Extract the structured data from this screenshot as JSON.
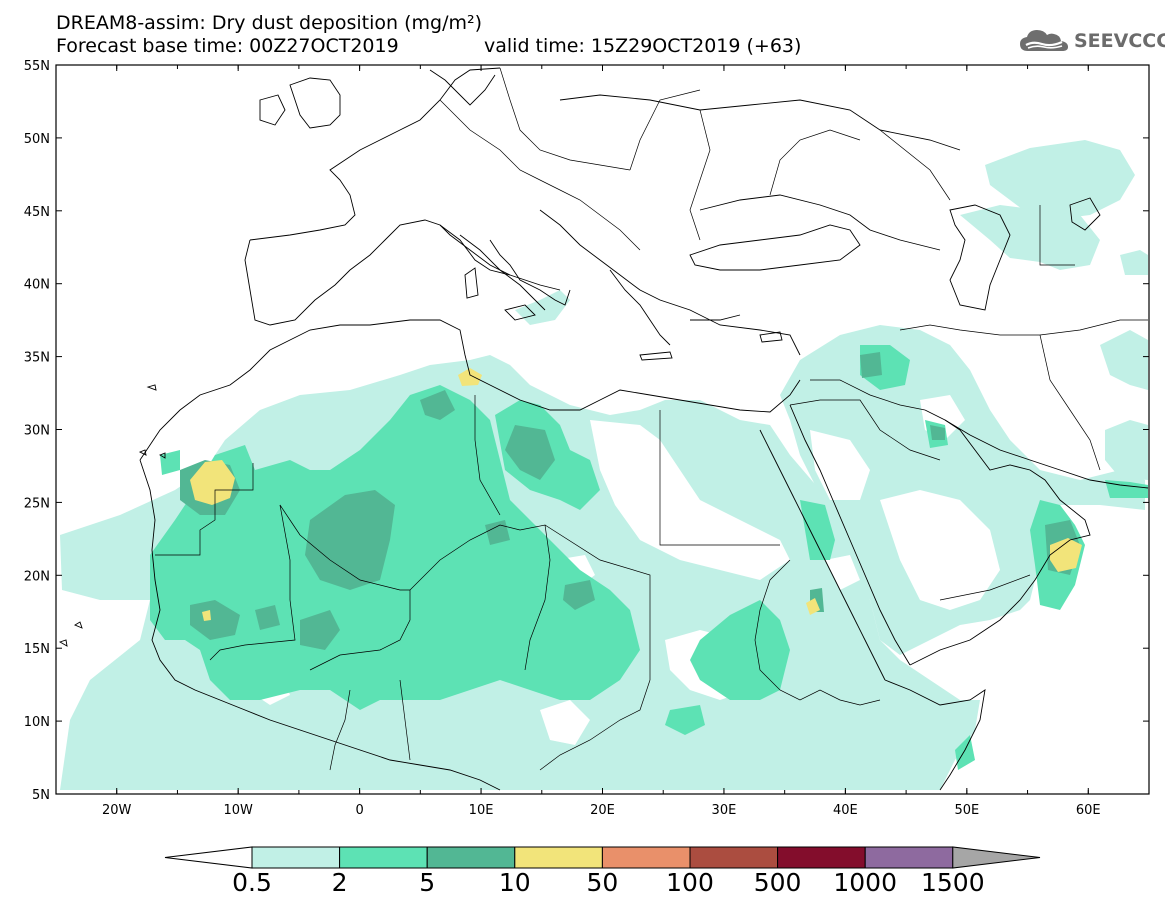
{
  "header": {
    "title_line1": "DREAM8-assim: Dry dust deposition (mg/m²)",
    "title_line2_base": "Forecast base time: 00Z27OCT2019",
    "title_line2_valid": "valid time: 15Z29OCT2019 (+63)"
  },
  "logo": {
    "text": "SEEVCCC",
    "icon": "cloud-logo-icon"
  },
  "map": {
    "lat_labels": [
      "55N",
      "50N",
      "45N",
      "40N",
      "35N",
      "30N",
      "25N",
      "20N",
      "15N",
      "10N",
      "5N"
    ],
    "lon_labels": [
      "20W",
      "10W",
      "0",
      "10E",
      "20E",
      "30E",
      "40E",
      "50E",
      "60E"
    ],
    "extent": {
      "lon_min": -25,
      "lon_max": 65,
      "lat_min": 5,
      "lat_max": 55
    }
  },
  "colorbar": {
    "labels": [
      "0.5",
      "2",
      "5",
      "10",
      "50",
      "100",
      "500",
      "1000",
      "1500"
    ],
    "colors": [
      "#c1f0e6",
      "#5de2b4",
      "#52b794",
      "#f2e47a",
      "#e9906a",
      "#ab4d40",
      "#830d2c",
      "#8e6a9f"
    ],
    "under_color": "#ffffff",
    "over_color": "#a6a6a6"
  },
  "fills": {
    "light": "#c1f0e6",
    "mid": "#5de2b4",
    "dark": "#52b794",
    "yellow": "#f2e47a"
  }
}
